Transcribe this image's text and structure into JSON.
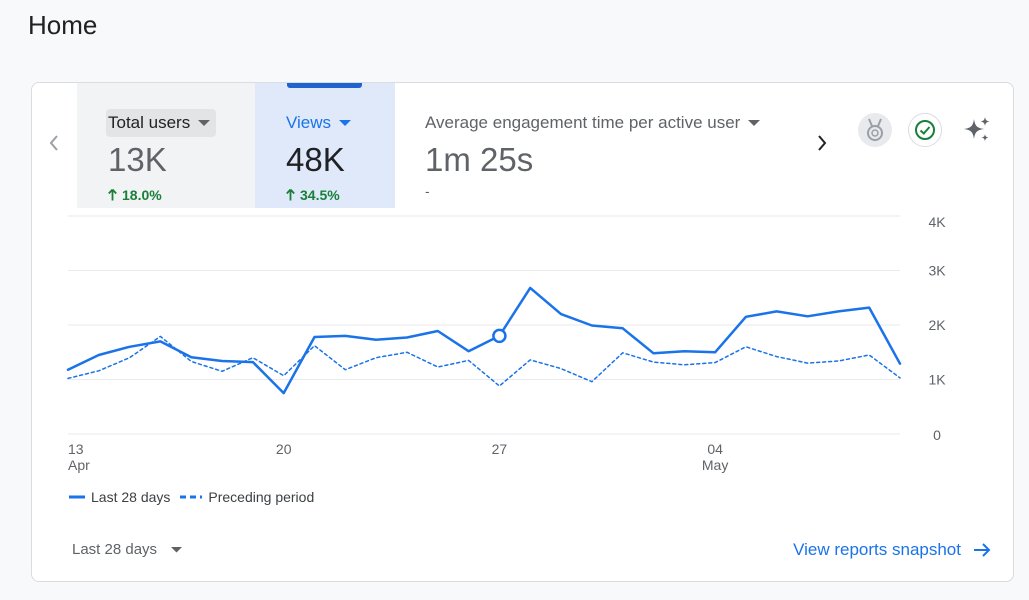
{
  "page": {
    "title": "Home"
  },
  "metrics": [
    {
      "label": "Total users",
      "value": "13K",
      "change": "18.0%"
    },
    {
      "label": "Views",
      "value": "48K",
      "change": "34.5%"
    },
    {
      "label": "Average engagement time per active user",
      "value": "1m 25s",
      "change": "-"
    }
  ],
  "actions": {
    "medal_icon": "medal-icon",
    "check_icon": "check-circle-icon",
    "sparkle_icon": "sparkle-icon"
  },
  "footer": {
    "date_range": "Last 28 days",
    "link": "View reports snapshot"
  },
  "colors": {
    "accent": "#1a73e8",
    "positive": "#188038",
    "selected_bg": "#dfe9fa"
  },
  "chart_data": {
    "type": "line",
    "x": [
      "Apr 13",
      "Apr 14",
      "Apr 15",
      "Apr 16",
      "Apr 17",
      "Apr 18",
      "Apr 19",
      "Apr 20",
      "Apr 21",
      "Apr 22",
      "Apr 23",
      "Apr 24",
      "Apr 25",
      "Apr 26",
      "Apr 27",
      "Apr 28",
      "Apr 29",
      "Apr 30",
      "May 1",
      "May 2",
      "May 3",
      "May 4",
      "May 5",
      "May 6",
      "May 7",
      "May 8",
      "May 9",
      "May 10"
    ],
    "x_ticks": [
      {
        "index": 0,
        "label": "13",
        "sublabel": "Apr"
      },
      {
        "index": 7,
        "label": "20",
        "sublabel": ""
      },
      {
        "index": 14,
        "label": "27",
        "sublabel": ""
      },
      {
        "index": 21,
        "label": "04",
        "sublabel": "May"
      }
    ],
    "y_ticks": [
      {
        "value": 0,
        "label": "0"
      },
      {
        "value": 1000,
        "label": "1K"
      },
      {
        "value": 2000,
        "label": "2K"
      },
      {
        "value": 3000,
        "label": "3K"
      },
      {
        "value": 4000,
        "label": "4K"
      }
    ],
    "ylim": [
      0,
      4000
    ],
    "grid": true,
    "legend_position": "bottom-left",
    "highlight_index": 14,
    "series": [
      {
        "name": "Last 28 days",
        "style": "solid",
        "color": "#1a73e8",
        "values": [
          1180,
          1450,
          1600,
          1700,
          1410,
          1340,
          1320,
          750,
          1780,
          1800,
          1730,
          1770,
          1890,
          1520,
          1800,
          2680,
          2200,
          1990,
          1940,
          1480,
          1520,
          1500,
          2150,
          2250,
          2160,
          2250,
          2320,
          1290
        ]
      },
      {
        "name": "Preceding period",
        "style": "dashed",
        "color": "#1a73e8",
        "values": [
          1020,
          1160,
          1400,
          1790,
          1330,
          1150,
          1400,
          1070,
          1620,
          1180,
          1400,
          1500,
          1230,
          1350,
          880,
          1360,
          1200,
          960,
          1490,
          1320,
          1270,
          1310,
          1600,
          1420,
          1300,
          1340,
          1450,
          1030
        ]
      }
    ]
  }
}
